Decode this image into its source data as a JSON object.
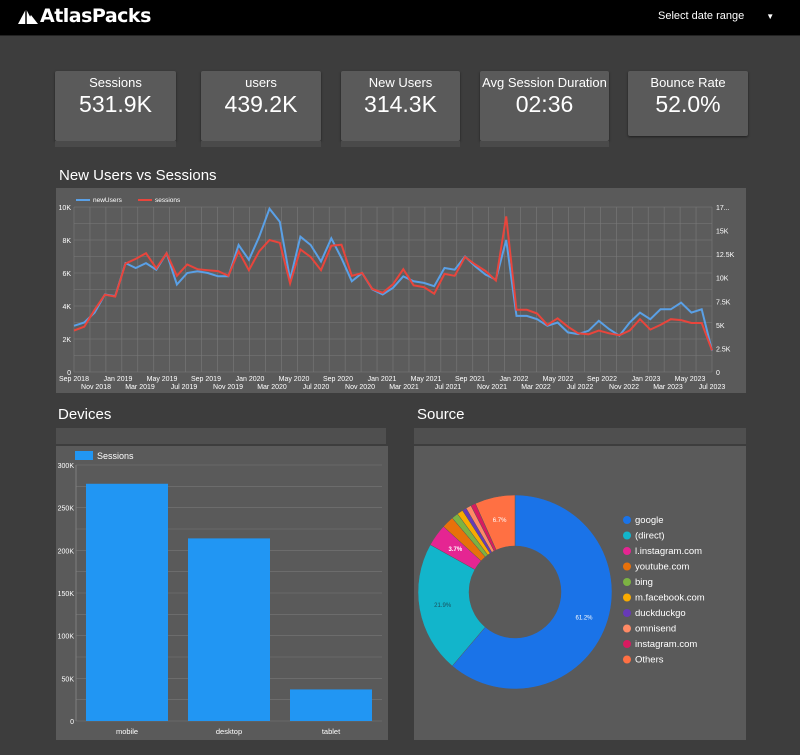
{
  "header": {
    "logo_text": "AtlasPacks",
    "date_range_label": "Select date range"
  },
  "scorecards": [
    {
      "label": "Sessions",
      "value": "531.9K"
    },
    {
      "label": "users",
      "value": "439.2K"
    },
    {
      "label": "New Users",
      "value": "314.3K"
    },
    {
      "label": "Avg Session Duration",
      "value": "02:36"
    },
    {
      "label": "Bounce Rate",
      "value": "52.0%"
    }
  ],
  "sections": {
    "timeseries_title": "New Users vs Sessions",
    "devices_title": "Devices",
    "source_title": "Source"
  },
  "colors": {
    "newUsers": "#5aa0e6",
    "sessions": "#e8453c",
    "bar": "#2196f3"
  },
  "chart_data": [
    {
      "type": "line",
      "title": "New Users vs Sessions",
      "legend_position": "top-left",
      "grid": true,
      "x_ticks_upper": [
        "Sep 2018",
        "Jan 2019",
        "May 2019",
        "Sep 2019",
        "Jan 2020",
        "May 2020",
        "Sep 2020",
        "Jan 2021",
        "May 2021",
        "Sep 2021",
        "Jan 2022",
        "May 2022",
        "Sep 2022",
        "Jan 2023",
        "May 2023"
      ],
      "x_ticks_lower": [
        "Nov 2018",
        "Mar 2019",
        "Jul 2019",
        "Nov 2019",
        "Mar 2020",
        "Jul 2020",
        "Nov 2020",
        "Mar 2021",
        "Jul 2021",
        "Nov 2021",
        "Mar 2022",
        "Jul 2022",
        "Nov 2022",
        "Mar 2023",
        "Jul 2023"
      ],
      "x_start": "2018-09",
      "x_end": "2023-07",
      "y_left": {
        "min": 0,
        "max": 10000,
        "ticks": [
          "0",
          "2K",
          "4K",
          "6K",
          "8K",
          "10K"
        ]
      },
      "y_right": {
        "min": 0,
        "max": 17500,
        "ticks": [
          "0",
          "2.5K",
          "5K",
          "7.5K",
          "10K",
          "12.5K",
          "15K",
          "17..."
        ]
      },
      "series": [
        {
          "name": "newUsers",
          "axis": "left",
          "values": [
            2800,
            3000,
            3600,
            4700,
            4600,
            6600,
            6300,
            6600,
            6200,
            7200,
            5300,
            6000,
            6100,
            6000,
            5800,
            5800,
            7700,
            6800,
            8200,
            9900,
            9100,
            5600,
            8200,
            7700,
            6700,
            8100,
            6900,
            5500,
            6000,
            5000,
            4700,
            5100,
            5800,
            5500,
            5400,
            5200,
            6300,
            6200,
            7000,
            6400,
            5900,
            5600,
            8000,
            3400,
            3400,
            3200,
            2800,
            3000,
            2400,
            2300,
            2500,
            3100,
            2600,
            2200,
            3000,
            3600,
            3200,
            3800,
            3800,
            4200,
            3600,
            3800,
            1300
          ]
        },
        {
          "name": "sessions",
          "axis": "right",
          "values": [
            4400,
            4800,
            6600,
            8200,
            8000,
            11500,
            12000,
            12600,
            11000,
            12600,
            10200,
            11400,
            10900,
            10800,
            10700,
            10200,
            12800,
            10800,
            12800,
            14000,
            13700,
            9400,
            13000,
            12200,
            10800,
            13400,
            13500,
            10200,
            10500,
            8800,
            8400,
            9300,
            10900,
            9200,
            9000,
            8300,
            10400,
            10200,
            12200,
            11400,
            10700,
            9700,
            16500,
            6600,
            6600,
            6200,
            5000,
            5700,
            4800,
            4100,
            4000,
            4400,
            4100,
            3900,
            4400,
            5600,
            4500,
            5000,
            5600,
            5500,
            5200,
            5200,
            2300
          ]
        }
      ]
    },
    {
      "type": "bar",
      "legend_position": "top-left",
      "grid": true,
      "categories": [
        "mobile",
        "desktop",
        "tablet"
      ],
      "series": [
        {
          "name": "Sessions",
          "values": [
            278000,
            214000,
            37000
          ]
        }
      ],
      "ylim": [
        0,
        300000
      ],
      "y_ticks": [
        "0",
        "50K",
        "100K",
        "150K",
        "200K",
        "250K",
        "300K"
      ]
    },
    {
      "type": "pie",
      "legend_position": "right",
      "labels": [
        "google",
        "(direct)",
        "l.instagram.com",
        "youtube.com",
        "bing",
        "m.facebook.com",
        "duckduckgo",
        "omnisend",
        "instagram.com",
        "Others"
      ],
      "values": [
        61.2,
        21.9,
        3.7,
        2.0,
        1.1,
        1.0,
        0.7,
        0.9,
        0.8,
        6.7
      ],
      "colors": [
        "#1a73e8",
        "#12b5cb",
        "#e52592",
        "#e8710a",
        "#7cb342",
        "#f9ab00",
        "#673ab7",
        "#ff8a65",
        "#d81b60",
        "#ff7043"
      ],
      "slice_labels": [
        "61.2%",
        "21.9%",
        "3.7%",
        "",
        "",
        "",
        "",
        "",
        "",
        "6.7%"
      ]
    }
  ]
}
